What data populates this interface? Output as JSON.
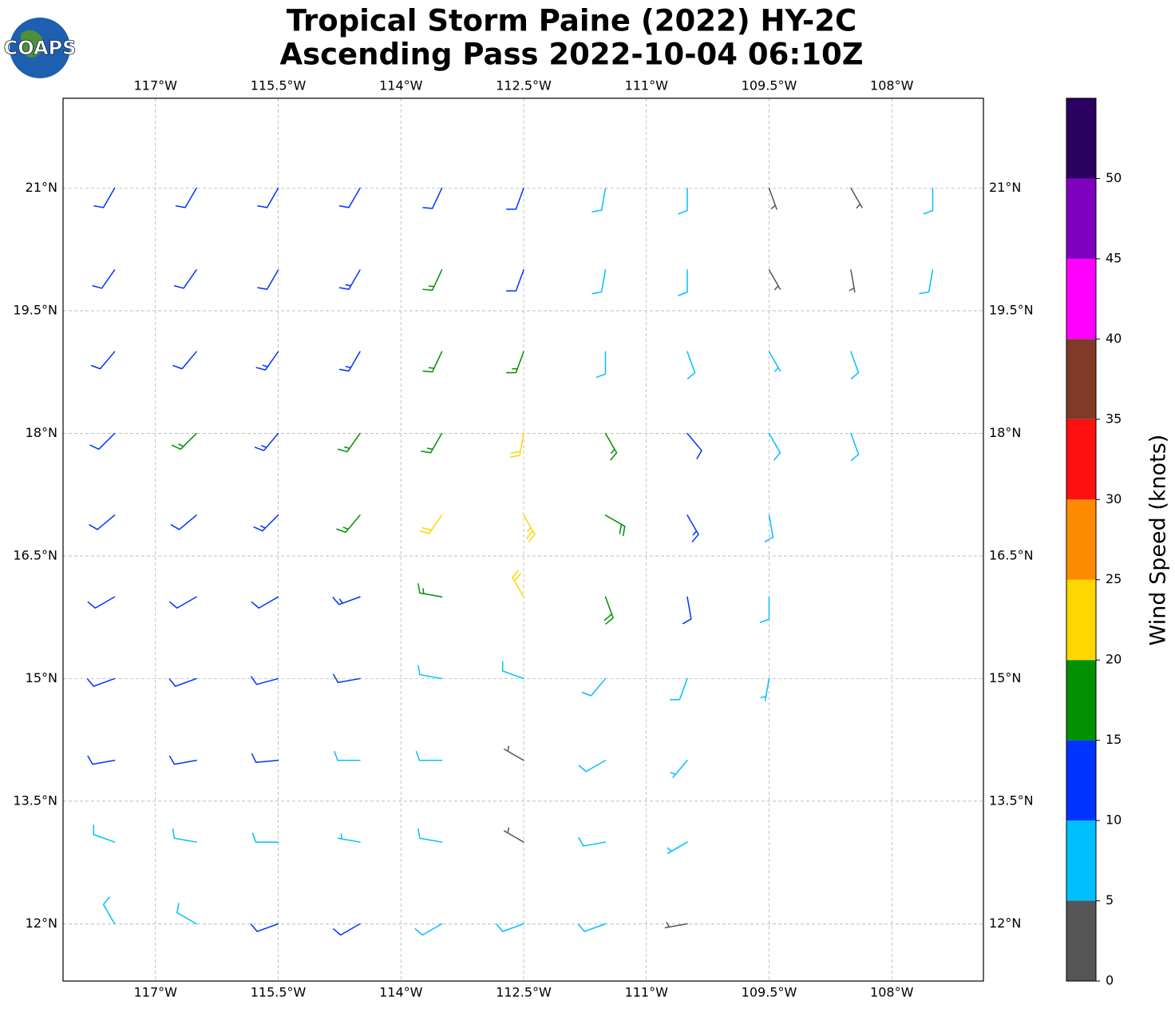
{
  "chart_data": {
    "type": "barb",
    "title": [
      "Tropical Storm Paine (2022) HY-2C",
      "Ascending Pass 2022-10-04 06:10Z"
    ],
    "logo": "COAPS",
    "xlim": [
      -118.13,
      -106.88
    ],
    "ylim": [
      11.3,
      22.1
    ],
    "xticks": [
      {
        "value": -117,
        "label": "117°W"
      },
      {
        "value": -115.5,
        "label": "115.5°W"
      },
      {
        "value": -114,
        "label": "114°W"
      },
      {
        "value": -112.5,
        "label": "112.5°W"
      },
      {
        "value": -111,
        "label": "111°W"
      },
      {
        "value": -109.5,
        "label": "109.5°W"
      },
      {
        "value": -108,
        "label": "108°W"
      }
    ],
    "yticks": [
      {
        "value": 12,
        "label": "12°N"
      },
      {
        "value": 13.5,
        "label": "13.5°N"
      },
      {
        "value": 15,
        "label": "15°N"
      },
      {
        "value": 16.5,
        "label": "16.5°N"
      },
      {
        "value": 18,
        "label": "18°N"
      },
      {
        "value": 19.5,
        "label": "19.5°N"
      },
      {
        "value": 21,
        "label": "21°N"
      }
    ],
    "grid": true,
    "colorbar": {
      "label": "Wind Speed (knots)",
      "levels": [
        0,
        5,
        10,
        15,
        20,
        25,
        30,
        35,
        40,
        45,
        50,
        55
      ],
      "colors": [
        "#555555",
        "#00bfff",
        "#0033ff",
        "#009000",
        "#ffd700",
        "#ff8c00",
        "#ff1010",
        "#7f3a28",
        "#ff00ff",
        "#8000c0",
        "#2a0060"
      ],
      "ticks": [
        0,
        5,
        10,
        15,
        20,
        25,
        30,
        35,
        40,
        45,
        50
      ]
    },
    "barbs": {
      "lon": [
        -117.5,
        -116.5,
        -115.5,
        -114.5,
        -113.5,
        -112.5,
        -111.5,
        -110.5,
        -109.5,
        -108.5,
        -107.5,
        -117.5,
        -116.5,
        -115.5,
        -114.5,
        -113.5,
        -112.5,
        -111.5,
        -110.5,
        -109.5,
        -108.5,
        -107.5,
        -117.5,
        -116.5,
        -115.5,
        -114.5,
        -113.5,
        -112.5,
        -111.5,
        -110.5,
        -109.5,
        -108.5,
        -117.5,
        -116.5,
        -115.5,
        -114.5,
        -113.5,
        -112.5,
        -111.5,
        -110.5,
        -109.5,
        -108.5,
        -117.5,
        -116.5,
        -115.5,
        -114.5,
        -113.5,
        -112.5,
        -111.5,
        -110.5,
        -109.5,
        -117.5,
        -116.5,
        -115.5,
        -114.5,
        -113.5,
        -112.5,
        -111.5,
        -110.5,
        -109.5,
        -117.5,
        -116.5,
        -115.5,
        -114.5,
        -113.5,
        -112.5,
        -111.5,
        -110.5,
        -109.5,
        -117.5,
        -116.5,
        -115.5,
        -114.5,
        -113.5,
        -112.5,
        -111.5,
        -110.5,
        -117.5,
        -116.5,
        -115.5,
        -114.5,
        -113.5,
        -112.5,
        -111.5,
        -110.5,
        -117.5,
        -116.5,
        -115.5,
        -114.5,
        -113.5,
        -112.5,
        -111.5,
        -110.5
      ],
      "lat": [
        21,
        21,
        21,
        21,
        21,
        21,
        21,
        21,
        21,
        21,
        21,
        20,
        20,
        20,
        20,
        20,
        20,
        20,
        20,
        20,
        20,
        20,
        19,
        19,
        19,
        19,
        19,
        19,
        19,
        19,
        19,
        19,
        18,
        18,
        18,
        18,
        18,
        18,
        18,
        18,
        18,
        18,
        17,
        17,
        17,
        17,
        17,
        17,
        17,
        17,
        17,
        16,
        16,
        16,
        16,
        16,
        16,
        16,
        16,
        16,
        15,
        15,
        15,
        15,
        15,
        15,
        15,
        15,
        15,
        14,
        14,
        14,
        14,
        14,
        14,
        14,
        14,
        13,
        13,
        13,
        13,
        13,
        13,
        13,
        13,
        12,
        12,
        12,
        12,
        12,
        12,
        12,
        12
      ],
      "speed": [
        12,
        12,
        12,
        12,
        12,
        11,
        8,
        8,
        4,
        4,
        8,
        12,
        12,
        12,
        13,
        16,
        12,
        9,
        8,
        4,
        4,
        8,
        12,
        12,
        13,
        14,
        16,
        16,
        9,
        8,
        7,
        8,
        12,
        16,
        14,
        16,
        17,
        22,
        16,
        12,
        9,
        8,
        12,
        12,
        13,
        17,
        22,
        24,
        18,
        13,
        9,
        12,
        12,
        12,
        14,
        17,
        22,
        18,
        12,
        9,
        12,
        12,
        12,
        11,
        9,
        8,
        9,
        8,
        7,
        12,
        12,
        12,
        9,
        8,
        4,
        8,
        7,
        8,
        8,
        8,
        6,
        8,
        4,
        8,
        5,
        8,
        8,
        12,
        12,
        8,
        8,
        8,
        4
      ],
      "direction": [
        210,
        210,
        210,
        210,
        205,
        200,
        190,
        180,
        160,
        150,
        180,
        215,
        215,
        210,
        210,
        205,
        200,
        190,
        180,
        150,
        170,
        190,
        220,
        220,
        215,
        210,
        205,
        200,
        180,
        160,
        150,
        160,
        225,
        225,
        220,
        215,
        210,
        190,
        150,
        140,
        150,
        160,
        230,
        230,
        225,
        220,
        215,
        150,
        120,
        150,
        170,
        240,
        240,
        240,
        250,
        280,
        330,
        160,
        170,
        180,
        250,
        250,
        255,
        260,
        280,
        290,
        220,
        200,
        190,
        260,
        260,
        265,
        270,
        270,
        300,
        240,
        220,
        290,
        280,
        270,
        280,
        280,
        300,
        260,
        240,
        330,
        300,
        250,
        240,
        240,
        250,
        250,
        260
      ]
    }
  }
}
